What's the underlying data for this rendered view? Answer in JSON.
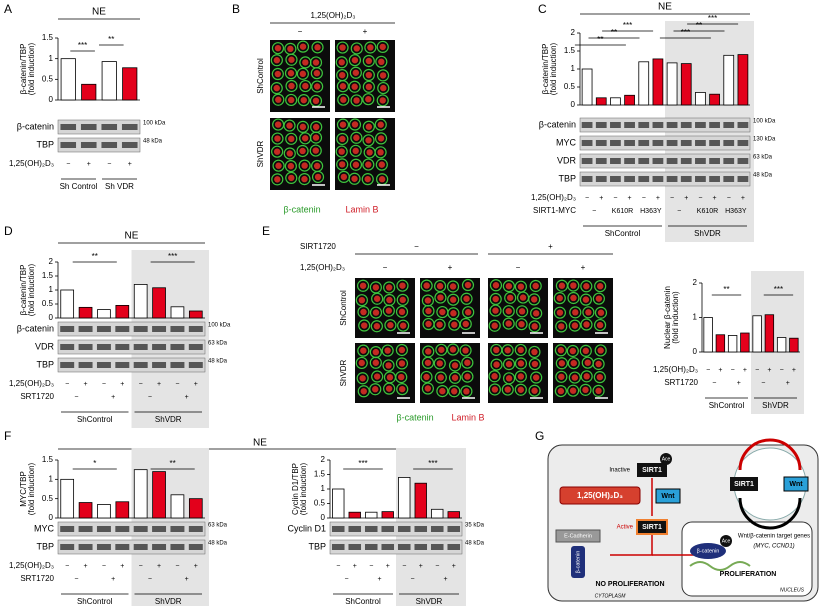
{
  "panel_letters": [
    "A",
    "B",
    "C",
    "D",
    "E",
    "F",
    "G"
  ],
  "chart_data": [
    {
      "type": "bar",
      "title": "NE",
      "y_label": [
        "β-catenin/TBP",
        "(fold induction)"
      ],
      "ylim": [
        0,
        1.5
      ],
      "yticks": [
        0,
        0.5,
        1,
        1.5
      ],
      "values": [
        1.0,
        0.38,
        0.93,
        0.78
      ],
      "colors": [
        "#ffffff",
        "#e3001b",
        "#ffffff",
        "#e3001b"
      ],
      "annotations": [
        "***",
        "**"
      ],
      "blots": [
        {
          "label": "β-catenin",
          "kda": "100 kDa"
        },
        {
          "label": "TBP",
          "kda": "48 kDa"
        }
      ],
      "conditions": [
        {
          "label": "1,25(OH)₂D₃",
          "marks": [
            "−",
            "+",
            "−",
            "+"
          ]
        }
      ],
      "groups": [
        "Sh Control",
        "Sh VDR"
      ]
    },
    {
      "type": "bar",
      "title": "NE",
      "y_label": [
        "β-catenin/TBP",
        "(fold induction)"
      ],
      "ylim": [
        0,
        2
      ],
      "yticks": [
        0,
        0.5,
        1,
        1.5,
        2
      ],
      "values": [
        1.0,
        0.2,
        0.2,
        0.27,
        1.2,
        1.28,
        1.17,
        1.15,
        0.35,
        0.3,
        1.38,
        1.4
      ],
      "colors": [
        "#ffffff",
        "#e3001b",
        "#ffffff",
        "#e3001b",
        "#ffffff",
        "#e3001b",
        "#ffffff",
        "#e3001b",
        "#ffffff",
        "#e3001b",
        "#ffffff",
        "#e3001b"
      ],
      "annotations": [
        "**",
        "**",
        "***",
        "***",
        "**",
        "***"
      ],
      "blots": [
        {
          "label": "β-catenin",
          "kda": "100 kDa"
        },
        {
          "label": "MYC",
          "kda": "130 kDa"
        },
        {
          "label": "VDR",
          "kda": "63 kDa"
        },
        {
          "label": "TBP",
          "kda": "48 kDa"
        }
      ],
      "conditions": [
        {
          "label": "1,25(OH)₂D₃",
          "marks": [
            "−",
            "+",
            "−",
            "+",
            "−",
            "+",
            "−",
            "+",
            "−",
            "+",
            "−",
            "+"
          ]
        },
        {
          "label": "SIRT1-MYC",
          "marks": [
            "−",
            "K610R",
            "H363Y",
            "−",
            "K610R",
            "H363Y"
          ]
        }
      ],
      "groups": [
        "ShControl",
        "ShVDR"
      ]
    },
    {
      "type": "bar",
      "title": "NE",
      "y_label": [
        "β-catenin/TBP",
        "(fold induction)"
      ],
      "ylim": [
        0,
        2
      ],
      "yticks": [
        0,
        0.5,
        1,
        1.5,
        2
      ],
      "values": [
        1.0,
        0.38,
        0.3,
        0.45,
        1.2,
        1.08,
        0.4,
        0.25
      ],
      "colors": [
        "#ffffff",
        "#e3001b",
        "#ffffff",
        "#e3001b",
        "#ffffff",
        "#e3001b",
        "#ffffff",
        "#e3001b"
      ],
      "annotations": [
        "**",
        "***"
      ],
      "blots": [
        {
          "label": "β-catenin",
          "kda": "100 kDa"
        },
        {
          "label": "VDR",
          "kda": "63 kDa"
        },
        {
          "label": "TBP",
          "kda": "48 kDa"
        }
      ],
      "conditions": [
        {
          "label": "1,25(OH)₂D₃",
          "marks": [
            "−",
            "+",
            "−",
            "+",
            "−",
            "+",
            "−",
            "+"
          ]
        },
        {
          "label": "SRT1720",
          "marks": [
            "−",
            "+",
            "−",
            "+"
          ]
        }
      ],
      "groups": [
        "ShControl",
        "ShVDR"
      ]
    },
    {
      "type": "bar",
      "y_label": [
        "Nuclear β-catenin",
        "(fold induction)"
      ],
      "ylim": [
        0,
        2
      ],
      "yticks": [
        0,
        1,
        2
      ],
      "values": [
        1.0,
        0.5,
        0.48,
        0.55,
        1.05,
        1.08,
        0.42,
        0.4
      ],
      "colors": [
        "#ffffff",
        "#e3001b",
        "#ffffff",
        "#e3001b",
        "#ffffff",
        "#e3001b",
        "#ffffff",
        "#e3001b"
      ],
      "annotations": [
        "**",
        "***"
      ],
      "conditions": [
        {
          "label": "1,25(OH)₂D₃",
          "marks": [
            "−",
            "+",
            "−",
            "+",
            "−",
            "+",
            "−",
            "+"
          ]
        },
        {
          "label": "SRT1720",
          "marks": [
            "−",
            "+",
            "−",
            "+"
          ]
        }
      ],
      "groups": [
        "ShControl",
        "ShVDR"
      ]
    },
    {
      "type": "bar",
      "y_label": [
        "MYC/TBP",
        "(fold induction)"
      ],
      "ylim": [
        0,
        1.5
      ],
      "yticks": [
        0,
        0.5,
        1,
        1.5
      ],
      "values": [
        1.0,
        0.4,
        0.35,
        0.42,
        1.25,
        1.2,
        0.6,
        0.5
      ],
      "colors": [
        "#ffffff",
        "#e3001b",
        "#ffffff",
        "#e3001b",
        "#ffffff",
        "#e3001b",
        "#ffffff",
        "#e3001b"
      ],
      "annotations": [
        "*",
        "**"
      ],
      "blots": [
        {
          "label": "MYC",
          "kda": "63 kDa"
        },
        {
          "label": "TBP",
          "kda": "48 kDa"
        }
      ],
      "conditions": [
        {
          "label": "1,25(OH)₂D₃",
          "marks": [
            "−",
            "+",
            "−",
            "+",
            "−",
            "+",
            "−",
            "+"
          ]
        },
        {
          "label": "SRT1720",
          "marks": [
            "−",
            "+",
            "−",
            "+"
          ]
        }
      ],
      "groups": [
        "ShControl",
        "ShVDR"
      ]
    },
    {
      "type": "bar",
      "y_label": [
        "Cyclin D1/TBP",
        "(fold induction)"
      ],
      "ylim": [
        0,
        2
      ],
      "yticks": [
        0,
        0.5,
        1,
        1.5,
        2
      ],
      "values": [
        1.0,
        0.2,
        0.2,
        0.22,
        1.4,
        1.2,
        0.3,
        0.22
      ],
      "colors": [
        "#ffffff",
        "#e3001b",
        "#ffffff",
        "#e3001b",
        "#ffffff",
        "#e3001b",
        "#ffffff",
        "#e3001b"
      ],
      "annotations": [
        "***",
        "***"
      ],
      "blots": [
        {
          "label": "Cyclin D1",
          "kda": "35 kDa"
        },
        {
          "label": "TBP",
          "kda": "48 kDa"
        }
      ],
      "conditions": [
        {
          "label": "",
          "marks": [
            "−",
            "+",
            "−",
            "+",
            "−",
            "+",
            "−",
            "+"
          ]
        },
        {
          "label": "",
          "marks": [
            "−",
            "+",
            "−",
            "+"
          ]
        }
      ],
      "groups": [
        "ShControl",
        "ShVDR"
      ]
    }
  ],
  "header_F": "NE",
  "microscopy": {
    "B": {
      "header": "1,25(OH)₂D₃",
      "cols": [
        "−",
        "+"
      ],
      "rows": [
        "ShControl",
        "ShVDR"
      ],
      "legend": [
        "β-catenin",
        "Lamin B"
      ]
    },
    "E": {
      "header": "SIRT1720",
      "header_cols": [
        "−",
        "+"
      ],
      "sub_header": "1,25(OH)₂D₃",
      "cols": [
        "−",
        "+",
        "−",
        "+"
      ],
      "rows": [
        "ShControl",
        "ShVDR"
      ],
      "legend": [
        "β-catenin",
        "Lamin B"
      ]
    }
  },
  "diagram": {
    "ace": "Ace",
    "inactive": "Inactive",
    "sirt1": "SIRT1",
    "vitd": "1,25(OH)₂D₃",
    "wnt": "Wnt",
    "active": "Active",
    "ecadherin": "E-Cadherin",
    "bcatenin": "β-catenin",
    "no_prolif": "NO PROLIFERATION",
    "cytoplasm": "CYTOPLASM",
    "target_genes": "Wnt/β-catenin target genes",
    "genes": "(MYC, CCND1)",
    "prolif": "PROLIFERATION",
    "nucleus": "NUCLEUS"
  }
}
